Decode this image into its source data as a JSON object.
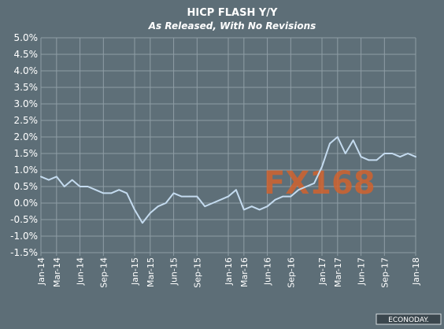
{
  "chart_data": {
    "type": "line",
    "title": "HICP FLASH Y/Y",
    "subtitle": "As Released, With No Revisions",
    "xlabel": "",
    "ylabel": "",
    "ylim": [
      -1.5,
      5.0
    ],
    "y_ticks": [
      "5.0%",
      "4.5%",
      "4.0%",
      "3.5%",
      "3.0%",
      "2.5%",
      "2.0%",
      "1.5%",
      "1.0%",
      "0.5%",
      "0.0%",
      "-0.5%",
      "-1.0%",
      "-1.5%"
    ],
    "x_tick_labels": [
      "Jan-14",
      "Mar-14",
      "Jun-14",
      "Sep-14",
      "Jan-15",
      "Mar-15",
      "Jun-15",
      "Sep-15",
      "Jan-16",
      "Mar-16",
      "Jun-16",
      "Sep-16",
      "Jan-17",
      "Mar-17",
      "Jun-17",
      "Sep-17",
      "Jan-18"
    ],
    "grid": true,
    "legend": "none",
    "x": [
      "Jan-14",
      "Feb-14",
      "Mar-14",
      "Apr-14",
      "May-14",
      "Jun-14",
      "Jul-14",
      "Aug-14",
      "Sep-14",
      "Oct-14",
      "Nov-14",
      "Dec-14",
      "Jan-15",
      "Feb-15",
      "Mar-15",
      "Apr-15",
      "May-15",
      "Jun-15",
      "Jul-15",
      "Aug-15",
      "Sep-15",
      "Oct-15",
      "Nov-15",
      "Dec-15",
      "Jan-16",
      "Feb-16",
      "Mar-16",
      "Apr-16",
      "May-16",
      "Jun-16",
      "Jul-16",
      "Aug-16",
      "Sep-16",
      "Oct-16",
      "Nov-16",
      "Dec-16",
      "Jan-17",
      "Feb-17",
      "Mar-17",
      "Apr-17",
      "May-17",
      "Jun-17",
      "Jul-17",
      "Aug-17",
      "Sep-17",
      "Oct-17",
      "Nov-17",
      "Dec-17",
      "Jan-18"
    ],
    "series": [
      {
        "values": [
          0.8,
          0.7,
          0.8,
          0.5,
          0.7,
          0.5,
          0.5,
          0.4,
          0.3,
          0.3,
          0.4,
          0.3,
          -0.2,
          -0.6,
          -0.3,
          -0.1,
          0.0,
          0.3,
          0.2,
          0.2,
          0.2,
          -0.1,
          0.0,
          0.1,
          0.2,
          0.4,
          -0.2,
          -0.1,
          -0.2,
          -0.1,
          0.1,
          0.2,
          0.2,
          0.4,
          0.5,
          0.6,
          1.1,
          1.8,
          2.0,
          1.5,
          1.9,
          1.4,
          1.3,
          1.3,
          1.5,
          1.5,
          1.4,
          1.5,
          1.4
        ]
      }
    ],
    "colors": {
      "background": "#5d6e77",
      "plot_background": "#5e6f78",
      "line": "#c4dbef",
      "grid": "#8e9da5",
      "text": "#ffffff"
    }
  },
  "watermark": "FX168",
  "source_badge": "ECONODAY."
}
